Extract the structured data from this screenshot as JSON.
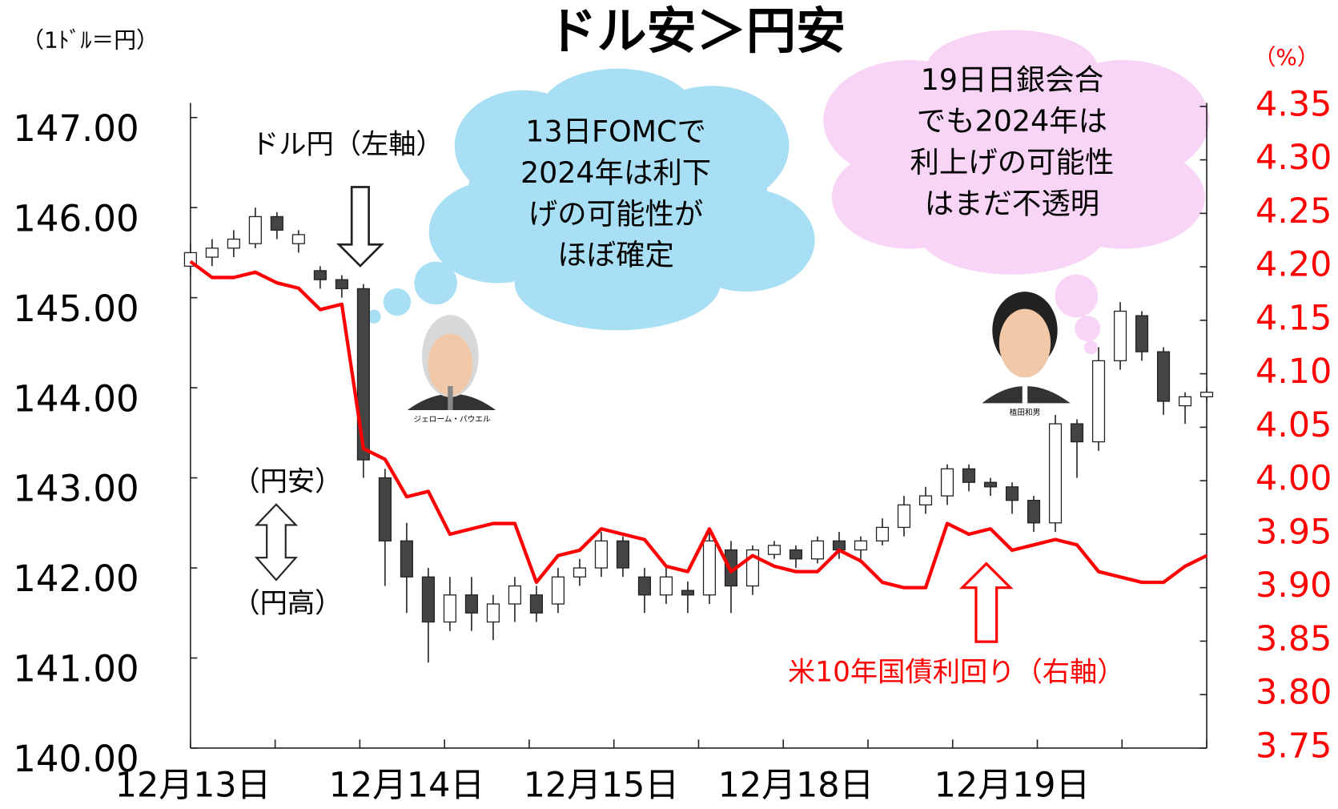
{
  "chart_data": {
    "type": "candlestick",
    "title": "ドル安＞円安",
    "y_unit_label": "（1ﾄﾞﾙ＝円）",
    "y2_unit_label": "（%）",
    "categories": [
      "12月13日",
      null,
      null,
      null,
      null,
      null,
      null,
      null,
      null,
      null,
      "12月14日",
      null,
      null,
      null,
      null,
      null,
      null,
      null,
      null,
      "12月15日",
      null,
      null,
      null,
      null,
      null,
      null,
      null,
      null,
      "12月18日",
      null,
      null,
      null,
      null,
      null,
      null,
      null,
      null,
      null,
      "12月19日",
      null,
      null,
      null,
      null,
      null,
      null,
      null,
      null,
      null
    ],
    "series": [
      {
        "name": "ドル円（左軸）",
        "type": "candlestick",
        "up_color": "#ffffff",
        "down_color": "#444444",
        "edge_color": "#222222",
        "open": [
          145.35,
          145.45,
          145.55,
          145.6,
          145.9,
          145.6,
          145.3,
          145.2,
          145.1,
          143.0,
          142.3,
          141.9,
          141.4,
          141.7,
          141.4,
          141.6,
          141.7,
          141.6,
          141.9,
          142.0,
          142.3,
          141.9,
          141.7,
          141.75,
          141.7,
          142.2,
          141.8,
          142.15,
          142.2,
          142.1,
          142.3,
          142.2,
          142.3,
          142.45,
          142.7,
          142.8,
          143.1,
          142.95,
          142.9,
          142.75,
          142.5,
          143.6,
          143.4,
          144.3,
          144.8,
          144.4,
          143.8,
          143.9
        ],
        "high": [
          145.6,
          145.65,
          145.75,
          146.0,
          145.95,
          145.75,
          145.35,
          145.25,
          145.15,
          143.1,
          142.5,
          142.0,
          141.9,
          141.9,
          141.7,
          141.9,
          141.8,
          142.0,
          142.1,
          142.4,
          142.35,
          142.0,
          142.0,
          141.85,
          142.4,
          142.3,
          142.25,
          142.3,
          142.25,
          142.35,
          142.4,
          142.35,
          142.55,
          142.8,
          142.9,
          143.15,
          143.15,
          143.0,
          142.95,
          142.8,
          143.7,
          143.65,
          144.45,
          144.95,
          144.85,
          144.45,
          143.95,
          144.0
        ],
        "low": [
          145.25,
          145.35,
          145.45,
          145.55,
          145.65,
          145.5,
          145.1,
          145.0,
          143.0,
          141.8,
          141.5,
          140.95,
          141.3,
          141.3,
          141.2,
          141.4,
          141.4,
          141.5,
          141.8,
          141.9,
          141.9,
          141.5,
          141.6,
          141.5,
          141.6,
          141.5,
          141.7,
          142.1,
          142.0,
          142.05,
          142.1,
          142.1,
          142.25,
          142.35,
          142.6,
          142.7,
          142.85,
          142.8,
          142.6,
          142.4,
          142.4,
          143.0,
          143.3,
          144.2,
          144.3,
          143.7,
          143.6,
          143.85
        ],
        "close": [
          145.5,
          145.55,
          145.65,
          145.9,
          145.75,
          145.7,
          145.2,
          145.1,
          143.2,
          142.3,
          141.9,
          141.4,
          141.7,
          141.5,
          141.6,
          141.8,
          141.5,
          141.9,
          142.0,
          142.3,
          142.0,
          141.7,
          141.9,
          141.7,
          142.3,
          141.8,
          142.2,
          142.25,
          142.1,
          142.3,
          142.2,
          142.3,
          142.45,
          142.7,
          142.8,
          143.1,
          142.95,
          142.9,
          142.75,
          142.5,
          143.6,
          143.4,
          144.3,
          144.85,
          144.4,
          143.85,
          143.9,
          143.95
        ]
      },
      {
        "name": "米10年国債利回り（右軸）",
        "type": "line",
        "axis": "y2",
        "color": "#ff0000",
        "values": [
          4.205,
          4.19,
          4.19,
          4.195,
          4.185,
          4.18,
          4.16,
          4.165,
          4.03,
          4.02,
          3.985,
          3.99,
          3.95,
          3.955,
          3.96,
          3.96,
          3.905,
          3.93,
          3.935,
          3.955,
          3.95,
          3.945,
          3.92,
          3.915,
          3.955,
          3.915,
          3.93,
          3.92,
          3.915,
          3.915,
          3.935,
          3.925,
          3.905,
          3.9,
          3.9,
          3.96,
          3.95,
          3.955,
          3.935,
          3.94,
          3.945,
          3.94,
          3.915,
          3.91,
          3.905,
          3.905,
          3.92,
          3.93
        ]
      }
    ],
    "ylim": [
      140,
      147
    ],
    "yticks": [
      {
        "value": 140,
        "label": "140.00"
      },
      {
        "value": 141,
        "label": "141.00"
      },
      {
        "value": 142,
        "label": "142.00"
      },
      {
        "value": 143,
        "label": "143.00"
      },
      {
        "value": 144,
        "label": "144.00"
      },
      {
        "value": 145,
        "label": "145.00"
      },
      {
        "value": 146,
        "label": "146.00"
      },
      {
        "value": 147,
        "label": "147.00"
      }
    ],
    "y2lim": [
      3.75,
      4.35
    ],
    "y2ticks": [
      3.75,
      {
        "value": 3.8,
        "label": "3.80"
      },
      3.85,
      {
        "value": 3.9,
        "label": "3.90"
      },
      3.95,
      {
        "value": 4.0,
        "label": "4.00"
      },
      4.05,
      {
        "value": 4.1,
        "label": "4.10"
      },
      4.15,
      {
        "value": 4.2,
        "label": "4.20"
      },
      4.25,
      {
        "value": 4.3,
        "label": "4.30"
      },
      4.35
    ],
    "y2_color": "#ff0000",
    "annotations": {
      "yen_weak": "（円安）",
      "yen_strong": "（円高）",
      "bubbles": [
        [
          "13日FOMCで",
          "2024年は利下",
          "げの可能性が",
          "ほぼ確定"
        ],
        [
          "19日日銀会合",
          "でも2024年は",
          "利上げの可能性",
          "はまだ不透明"
        ]
      ],
      "portraits": [
        "ジェローム・パウエル",
        "植田和男"
      ]
    }
  }
}
